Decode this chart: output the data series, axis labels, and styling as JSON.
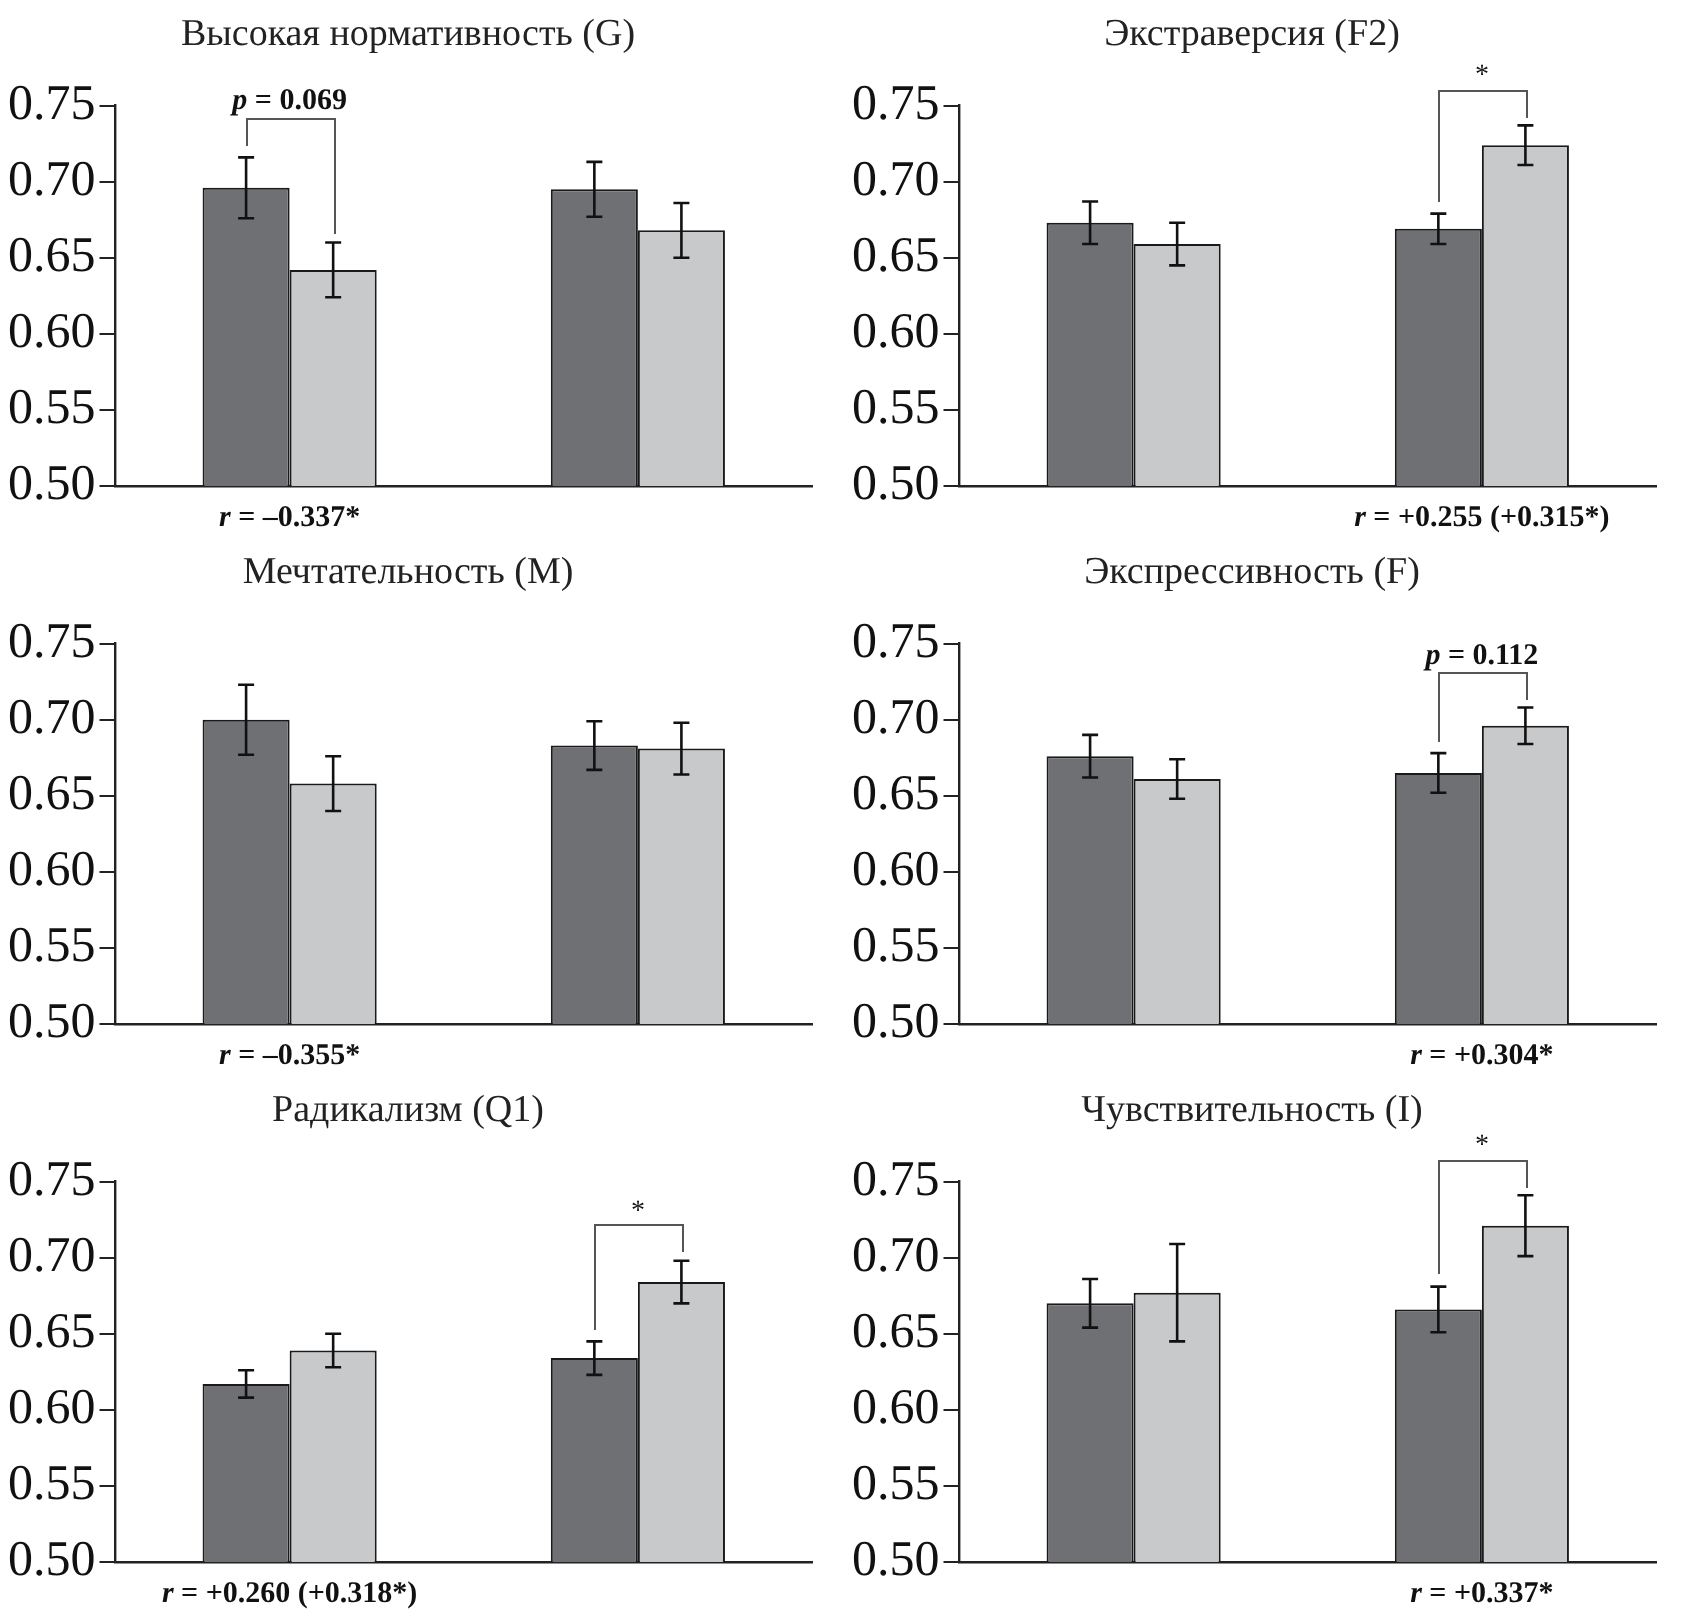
{
  "chart_data": [
    {
      "type": "bar",
      "title": "Высокая нормативность (G)",
      "categories": [
        null,
        null
      ],
      "series": [
        {
          "color": "#6f7074",
          "values": [
            0.696,
            0.695
          ],
          "errors": [
            0.02,
            0.018
          ]
        },
        {
          "color": "#c8c9cb",
          "values": [
            0.642,
            0.668
          ],
          "errors": [
            0.018,
            0.018
          ]
        }
      ],
      "ylim": [
        0.5,
        0.75
      ],
      "yticks": [
        {
          "value": 0.5,
          "label": "0.50"
        },
        0.55,
        {
          "value": 0.6,
          "label": "0.60"
        },
        0.65,
        {
          "value": 0.7,
          "label": "0.70"
        },
        0.75
      ],
      "grid": false,
      "annotations": [
        "p = 0.069",
        "r = –0.337*"
      ]
    },
    {
      "type": "bar",
      "title": "Экстраверсия (F2)",
      "categories": [
        null,
        null
      ],
      "series": [
        {
          "color": "#6f7074",
          "values": [
            0.673,
            0.669
          ],
          "errors": [
            0.014,
            0.01
          ]
        },
        {
          "color": "#c8c9cb",
          "values": [
            0.659,
            0.724
          ],
          "errors": [
            0.014,
            0.013
          ]
        }
      ],
      "ylim": [
        0.5,
        0.75
      ],
      "yticks": [
        {
          "value": 0.5,
          "label": "0.50"
        },
        0.55,
        {
          "value": 0.6,
          "label": "0.60"
        },
        0.65,
        {
          "value": 0.7,
          "label": "0.70"
        },
        0.75
      ],
      "grid": false,
      "annotations": [
        "*",
        "r = +0.255 (+0.315*)"
      ]
    },
    {
      "type": "bar",
      "title": "Мечтательность (M)",
      "categories": [
        null,
        null
      ],
      "series": [
        {
          "color": "#6f7074",
          "values": [
            0.7,
            0.683
          ],
          "errors": [
            0.023,
            0.016
          ]
        },
        {
          "color": "#c8c9cb",
          "values": [
            0.658,
            0.681
          ],
          "errors": [
            0.018,
            0.017
          ]
        }
      ],
      "ylim": [
        0.5,
        0.75
      ],
      "yticks": [
        {
          "value": 0.5,
          "label": "0.50"
        },
        0.55,
        {
          "value": 0.6,
          "label": "0.60"
        },
        0.65,
        {
          "value": 0.7,
          "label": "0.70"
        },
        0.75
      ],
      "grid": false,
      "annotations": [
        "r = –0.355*"
      ]
    },
    {
      "type": "bar",
      "title": "Экспрессивность (F)",
      "categories": [
        null,
        null
      ],
      "series": [
        {
          "color": "#6f7074",
          "values": [
            0.676,
            0.665
          ],
          "errors": [
            0.014,
            0.013
          ]
        },
        {
          "color": "#c8c9cb",
          "values": [
            0.661,
            0.696
          ],
          "errors": [
            0.013,
            0.012
          ]
        }
      ],
      "ylim": [
        0.5,
        0.75
      ],
      "yticks": [
        {
          "value": 0.5,
          "label": "0.50"
        },
        0.55,
        {
          "value": 0.6,
          "label": "0.60"
        },
        0.65,
        {
          "value": 0.7,
          "label": "0.70"
        },
        0.75
      ],
      "grid": false,
      "annotations": [
        "p = 0.112",
        "r = +0.304*"
      ]
    },
    {
      "type": "bar",
      "title": "Радикализм (Q1)",
      "categories": [
        null,
        null
      ],
      "series": [
        {
          "color": "#6f7074",
          "values": [
            0.617,
            0.634
          ],
          "errors": [
            0.009,
            0.011
          ]
        },
        {
          "color": "#c8c9cb",
          "values": [
            0.639,
            0.684
          ],
          "errors": [
            0.011,
            0.014
          ]
        }
      ],
      "ylim": [
        0.5,
        0.75
      ],
      "yticks": [
        {
          "value": 0.5,
          "label": "0.50"
        },
        0.55,
        {
          "value": 0.6,
          "label": "0.60"
        },
        0.65,
        {
          "value": 0.7,
          "label": "0.70"
        },
        0.75
      ],
      "grid": false,
      "annotations": [
        "*",
        "r = +0.260 (+0.318*)"
      ]
    },
    {
      "type": "bar",
      "title": "Чувствительность (I)",
      "categories": [
        null,
        null
      ],
      "series": [
        {
          "color": "#6f7074",
          "values": [
            0.67,
            0.666
          ],
          "errors": [
            0.016,
            0.015
          ]
        },
        {
          "color": "#c8c9cb",
          "values": [
            0.677,
            0.721
          ],
          "errors": [
            0.032,
            0.02
          ]
        }
      ],
      "ylim": [
        0.5,
        0.75
      ],
      "yticks": [
        {
          "value": 0.5,
          "label": "0.50"
        },
        0.55,
        {
          "value": 0.6,
          "label": "0.60"
        },
        0.65,
        {
          "value": 0.7,
          "label": "0.70"
        },
        0.75
      ],
      "grid": false,
      "annotations": [
        "*",
        "r = +0.337*"
      ]
    }
  ]
}
